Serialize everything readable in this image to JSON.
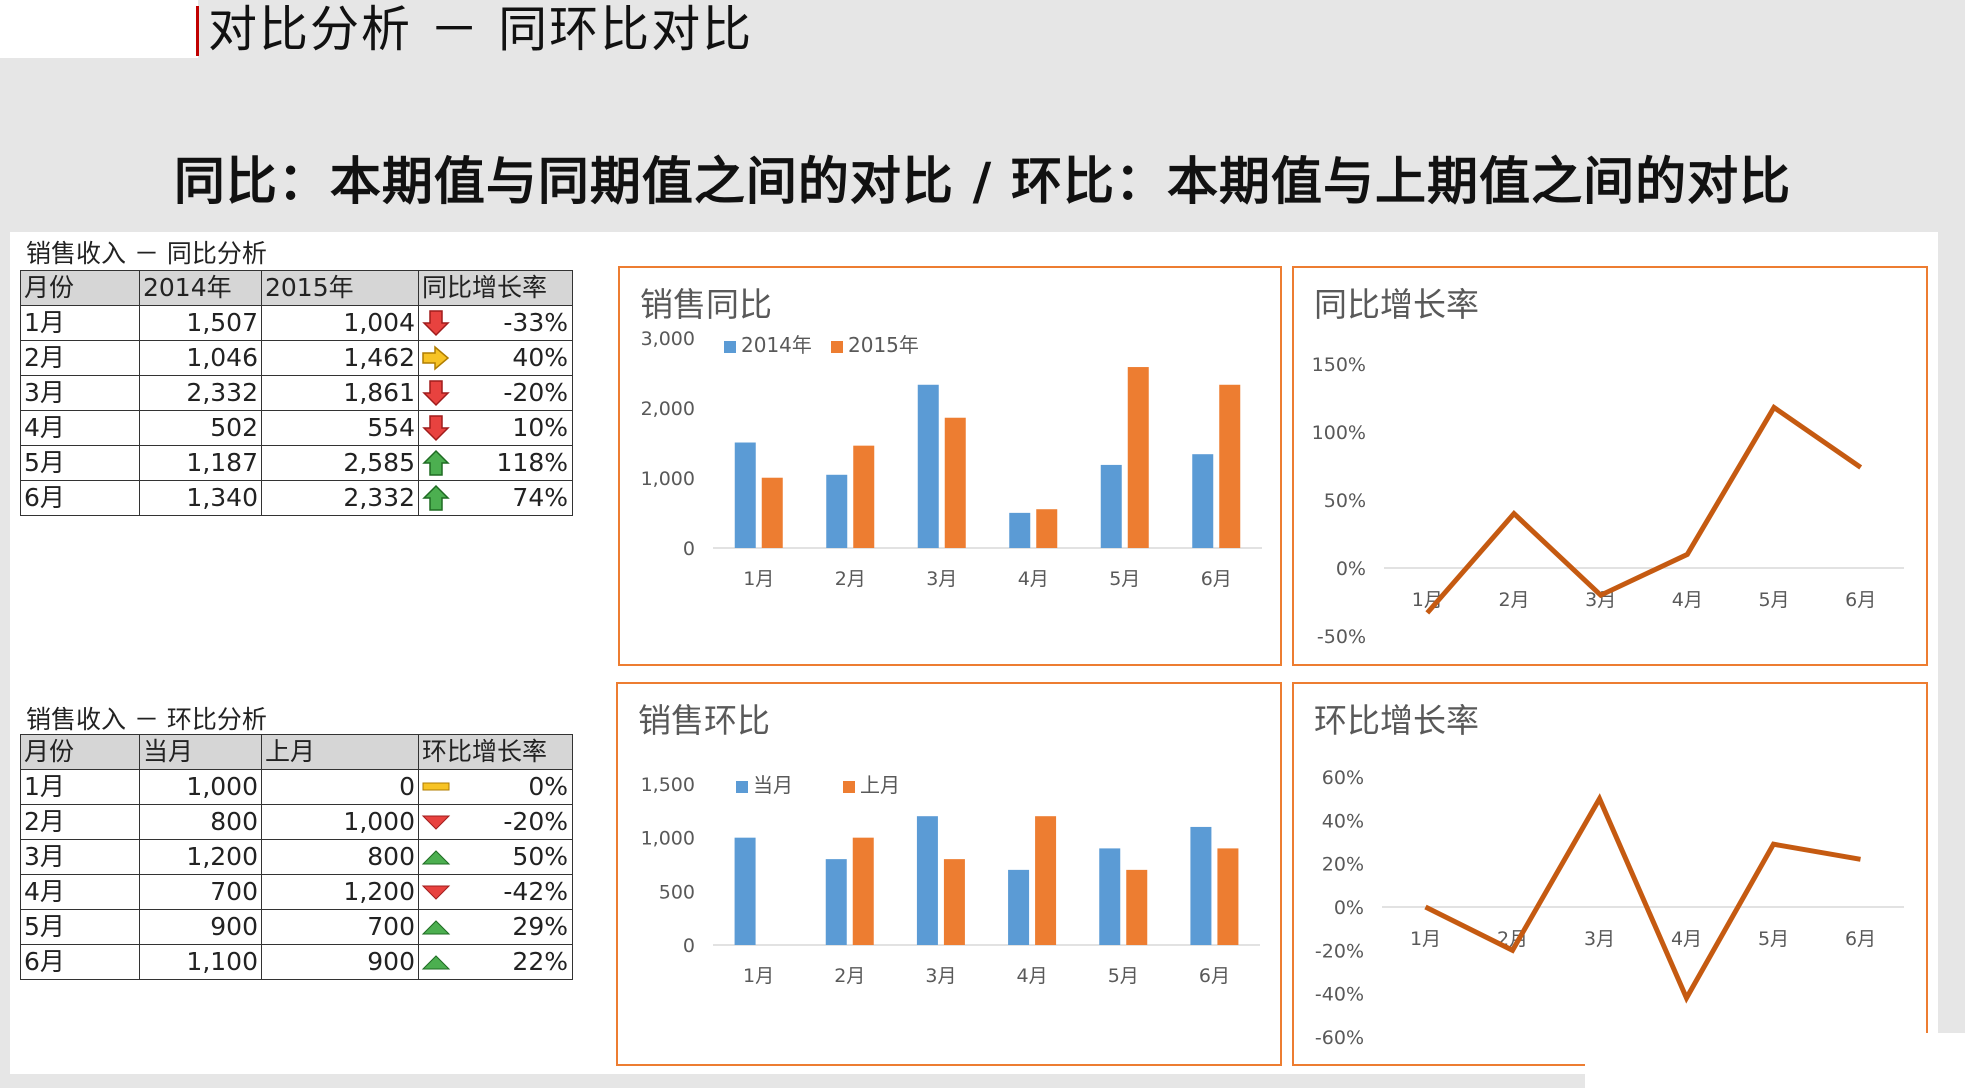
{
  "page": {
    "title": "对比分析 － 同环比对比",
    "subtitle": "同比：本期值与同期值之间的对比 / 环比：本期值与上期值之间的对比"
  },
  "colors": {
    "blue": "#5b9bd5",
    "orange": "#ed7d31",
    "line": "#c55a11",
    "panel_border": "#ed7d31"
  },
  "yoy_table": {
    "caption": "销售收入 － 同比分析",
    "headers": [
      "月份",
      "2014年",
      "2015年",
      "同比增长率"
    ],
    "rows": [
      {
        "month": "1月",
        "a": "1,507",
        "b": "1,004",
        "icon": "arrow-down-red",
        "rate": "-33%"
      },
      {
        "month": "2月",
        "a": "1,046",
        "b": "1,462",
        "icon": "arrow-right-yellow",
        "rate": "40%"
      },
      {
        "month": "3月",
        "a": "2,332",
        "b": "1,861",
        "icon": "arrow-down-red",
        "rate": "-20%"
      },
      {
        "month": "4月",
        "a": "502",
        "b": "554",
        "icon": "arrow-down-red",
        "rate": "10%"
      },
      {
        "month": "5月",
        "a": "1,187",
        "b": "2,585",
        "icon": "arrow-up-green",
        "rate": "118%"
      },
      {
        "month": "6月",
        "a": "1,340",
        "b": "2,332",
        "icon": "arrow-up-green",
        "rate": "74%"
      }
    ]
  },
  "mom_table": {
    "caption": "销售收入 － 环比分析",
    "headers": [
      "月份",
      "当月",
      "上月",
      "环比增长率"
    ],
    "rows": [
      {
        "month": "1月",
        "a": "1,000",
        "b": "0",
        "icon": "dash-yellow",
        "rate": "0%"
      },
      {
        "month": "2月",
        "a": "800",
        "b": "1,000",
        "icon": "triangle-down-red",
        "rate": "-20%"
      },
      {
        "month": "3月",
        "a": "1,200",
        "b": "800",
        "icon": "triangle-up-green",
        "rate": "50%"
      },
      {
        "month": "4月",
        "a": "700",
        "b": "1,200",
        "icon": "triangle-down-red",
        "rate": "-42%"
      },
      {
        "month": "5月",
        "a": "900",
        "b": "700",
        "icon": "triangle-up-green",
        "rate": "29%"
      },
      {
        "month": "6月",
        "a": "1,100",
        "b": "900",
        "icon": "triangle-up-green",
        "rate": "22%"
      }
    ]
  },
  "chart_data": [
    {
      "type": "bar",
      "title": "销售同比",
      "categories": [
        "1月",
        "2月",
        "3月",
        "4月",
        "5月",
        "6月"
      ],
      "series": [
        {
          "name": "2014年",
          "values": [
            1507,
            1046,
            2332,
            502,
            1187,
            1340
          ],
          "color": "#5b9bd5"
        },
        {
          "name": "2015年",
          "values": [
            1004,
            1462,
            1861,
            554,
            2585,
            2332
          ],
          "color": "#ed7d31"
        }
      ],
      "ylim": [
        0,
        3000
      ],
      "yticks": [
        0,
        1000,
        2000,
        3000
      ],
      "ytick_labels": [
        "0",
        "1,000",
        "2,000",
        "3,000"
      ],
      "legend": "top-left",
      "grid": false
    },
    {
      "type": "line",
      "title": "同比增长率",
      "categories": [
        "1月",
        "2月",
        "3月",
        "4月",
        "5月",
        "6月"
      ],
      "series": [
        {
          "values": [
            -33,
            40,
            -20,
            10,
            118,
            74
          ],
          "color": "#c55a11"
        }
      ],
      "ylim": [
        -50,
        150
      ],
      "yticks": [
        -50,
        0,
        50,
        100,
        150
      ],
      "ytick_labels": [
        "-50%",
        "0%",
        "50%",
        "100%",
        "150%"
      ],
      "grid": false
    },
    {
      "type": "bar",
      "title": "销售环比",
      "categories": [
        "1月",
        "2月",
        "3月",
        "4月",
        "5月",
        "6月"
      ],
      "series": [
        {
          "name": "当月",
          "values": [
            1000,
            800,
            1200,
            700,
            900,
            1100
          ],
          "color": "#5b9bd5"
        },
        {
          "name": "上月",
          "values": [
            0,
            1000,
            800,
            1200,
            700,
            900
          ],
          "color": "#ed7d31"
        }
      ],
      "ylim": [
        0,
        1500
      ],
      "yticks": [
        0,
        500,
        1000,
        1500
      ],
      "ytick_labels": [
        "0",
        "500",
        "1,000",
        "1,500"
      ],
      "legend": "top-left",
      "grid": false
    },
    {
      "type": "line",
      "title": "环比增长率",
      "categories": [
        "1月",
        "2月",
        "3月",
        "4月",
        "5月",
        "6月"
      ],
      "series": [
        {
          "values": [
            0,
            -20,
            50,
            -42,
            29,
            22
          ],
          "color": "#c55a11"
        }
      ],
      "ylim": [
        -60,
        60
      ],
      "yticks": [
        -60,
        -40,
        -20,
        0,
        20,
        40,
        60
      ],
      "ytick_labels": [
        "-60%",
        "-40%",
        "-20%",
        "0%",
        "20%",
        "40%",
        "60%"
      ],
      "grid": false
    }
  ]
}
